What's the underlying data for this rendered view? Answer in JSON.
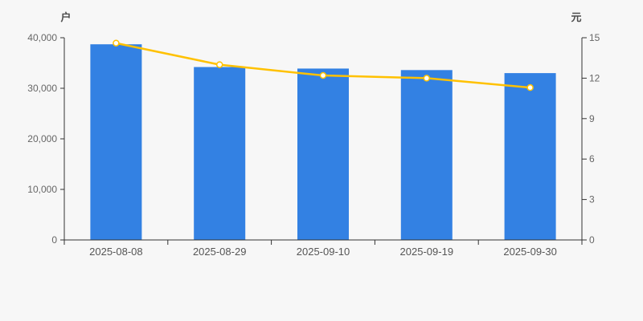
{
  "chart_data": {
    "type": "bar",
    "title": "",
    "categories": [
      "2025-08-08",
      "2025-08-29",
      "2025-09-10",
      "2025-09-19",
      "2025-09-30"
    ],
    "series": [
      {
        "id": "bar-series",
        "type": "bar",
        "axis": "left",
        "color": "#3381e3",
        "values": [
          38700,
          34200,
          33900,
          33600,
          33000
        ]
      },
      {
        "id": "line-series",
        "type": "line",
        "axis": "right",
        "color": "#ffc100",
        "marker": "empty-circle",
        "values": [
          14.6,
          13.0,
          12.2,
          12.0,
          11.3
        ]
      }
    ],
    "left_axis": {
      "name": "户",
      "min": 0,
      "max": 40000,
      "step": 10000,
      "tick_labels": [
        "0",
        "10,000",
        "20,000",
        "30,000",
        "40,000"
      ]
    },
    "right_axis": {
      "name": "元",
      "min": 0,
      "max": 15,
      "step": 3,
      "tick_labels": [
        "0",
        "3",
        "6",
        "9",
        "12",
        "15"
      ]
    },
    "background_color": "#f7f7f7",
    "axis_line_color": "#333333",
    "tick_label_color": "#666666",
    "grid": "off",
    "legend": "none"
  }
}
